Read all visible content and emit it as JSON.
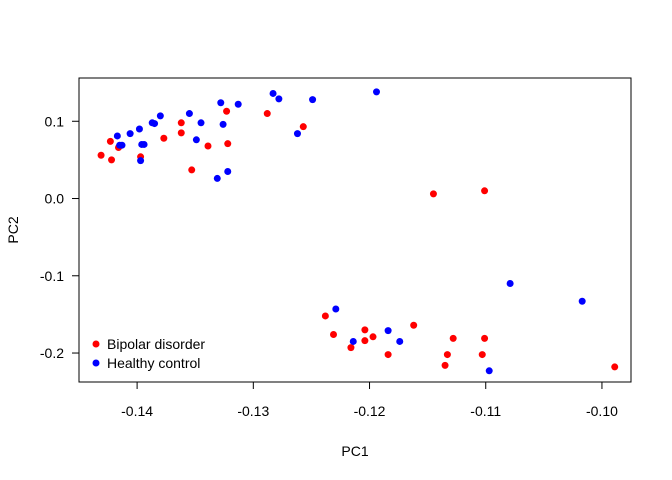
{
  "chart_data": {
    "type": "scatter",
    "xlabel": "PC1",
    "ylabel": "PC2",
    "xlim": [
      -0.145,
      -0.0975
    ],
    "ylim": [
      -0.2375,
      0.156
    ],
    "x_ticks": [
      -0.14,
      -0.13,
      -0.12,
      -0.11,
      -0.1
    ],
    "x_tick_labels": [
      "-0.14",
      "-0.13",
      "-0.12",
      "-0.11",
      "-0.10"
    ],
    "y_ticks": [
      -0.2,
      -0.1,
      0.0,
      0.1
    ],
    "y_tick_labels": [
      "-0.2",
      "-0.1",
      "0.0",
      "0.1"
    ],
    "grid": false,
    "legend_position": "bottom-left",
    "series": [
      {
        "name": "Bipolar disorder",
        "color": "#ff0000",
        "points": [
          [
            -0.1431,
            0.056
          ],
          [
            -0.1423,
            0.074
          ],
          [
            -0.1422,
            0.05
          ],
          [
            -0.1416,
            0.066
          ],
          [
            -0.1397,
            0.054
          ],
          [
            -0.1377,
            0.078
          ],
          [
            -0.1362,
            0.098
          ],
          [
            -0.1362,
            0.085
          ],
          [
            -0.1353,
            0.037
          ],
          [
            -0.1339,
            0.068
          ],
          [
            -0.1323,
            0.113
          ],
          [
            -0.1322,
            0.071
          ],
          [
            -0.1288,
            0.11
          ],
          [
            -0.1257,
            0.093
          ],
          [
            -0.1145,
            0.006
          ],
          [
            -0.1101,
            0.01
          ],
          [
            -0.1238,
            -0.152
          ],
          [
            -0.1231,
            -0.176
          ],
          [
            -0.1216,
            -0.193
          ],
          [
            -0.1204,
            -0.17
          ],
          [
            -0.1204,
            -0.184
          ],
          [
            -0.1197,
            -0.179
          ],
          [
            -0.1184,
            -0.202
          ],
          [
            -0.1162,
            -0.164
          ],
          [
            -0.1135,
            -0.216
          ],
          [
            -0.1133,
            -0.202
          ],
          [
            -0.1128,
            -0.181
          ],
          [
            -0.1103,
            -0.202
          ],
          [
            -0.1101,
            -0.181
          ],
          [
            -0.0989,
            -0.218
          ]
        ]
      },
      {
        "name": "Healthy control",
        "color": "#0000ff",
        "points": [
          [
            -0.1417,
            0.081
          ],
          [
            -0.1415,
            0.069
          ],
          [
            -0.1413,
            0.069
          ],
          [
            -0.1406,
            0.084
          ],
          [
            -0.1398,
            0.09
          ],
          [
            -0.1397,
            0.049
          ],
          [
            -0.1396,
            0.07
          ],
          [
            -0.1394,
            0.07
          ],
          [
            -0.1387,
            0.098
          ],
          [
            -0.1385,
            0.097
          ],
          [
            -0.138,
            0.107
          ],
          [
            -0.1355,
            0.11
          ],
          [
            -0.1349,
            0.076
          ],
          [
            -0.1345,
            0.098
          ],
          [
            -0.1331,
            0.026
          ],
          [
            -0.1328,
            0.124
          ],
          [
            -0.1326,
            0.096
          ],
          [
            -0.1322,
            0.035
          ],
          [
            -0.1313,
            0.122
          ],
          [
            -0.1283,
            0.136
          ],
          [
            -0.1278,
            0.129
          ],
          [
            -0.1262,
            0.084
          ],
          [
            -0.1249,
            0.128
          ],
          [
            -0.1194,
            0.138
          ],
          [
            -0.1229,
            -0.143
          ],
          [
            -0.1214,
            -0.185
          ],
          [
            -0.1184,
            -0.171
          ],
          [
            -0.1174,
            -0.185
          ],
          [
            -0.1097,
            -0.223
          ],
          [
            -0.1079,
            -0.11
          ],
          [
            -0.1017,
            -0.133
          ]
        ]
      }
    ]
  }
}
